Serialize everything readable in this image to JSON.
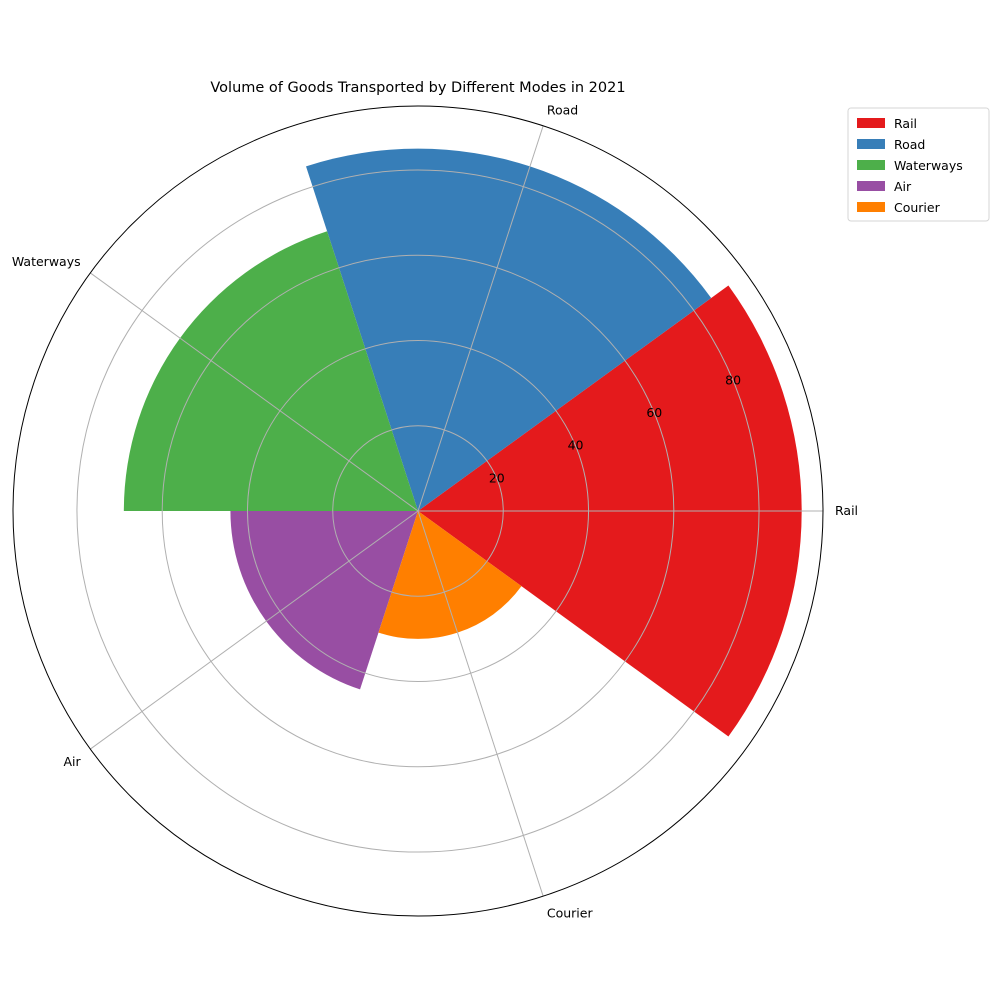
{
  "chart_data": {
    "type": "polar-bar",
    "title": "Volume of Goods Transported by Different Modes in 2021",
    "categories": [
      "Rail",
      "Road",
      "Waterways",
      "Air",
      "Courier"
    ],
    "values": [
      90,
      85,
      69,
      44,
      30
    ],
    "colors": [
      "#e41a1c",
      "#377eb8",
      "#4daf4a",
      "#984ea3",
      "#ff7f00"
    ],
    "rlim": [
      0,
      95
    ],
    "rticks": [
      20,
      40,
      60,
      80
    ],
    "grid": true,
    "legend": {
      "position": "top-right",
      "entries": [
        "Rail",
        "Road",
        "Waterways",
        "Air",
        "Courier"
      ]
    }
  }
}
